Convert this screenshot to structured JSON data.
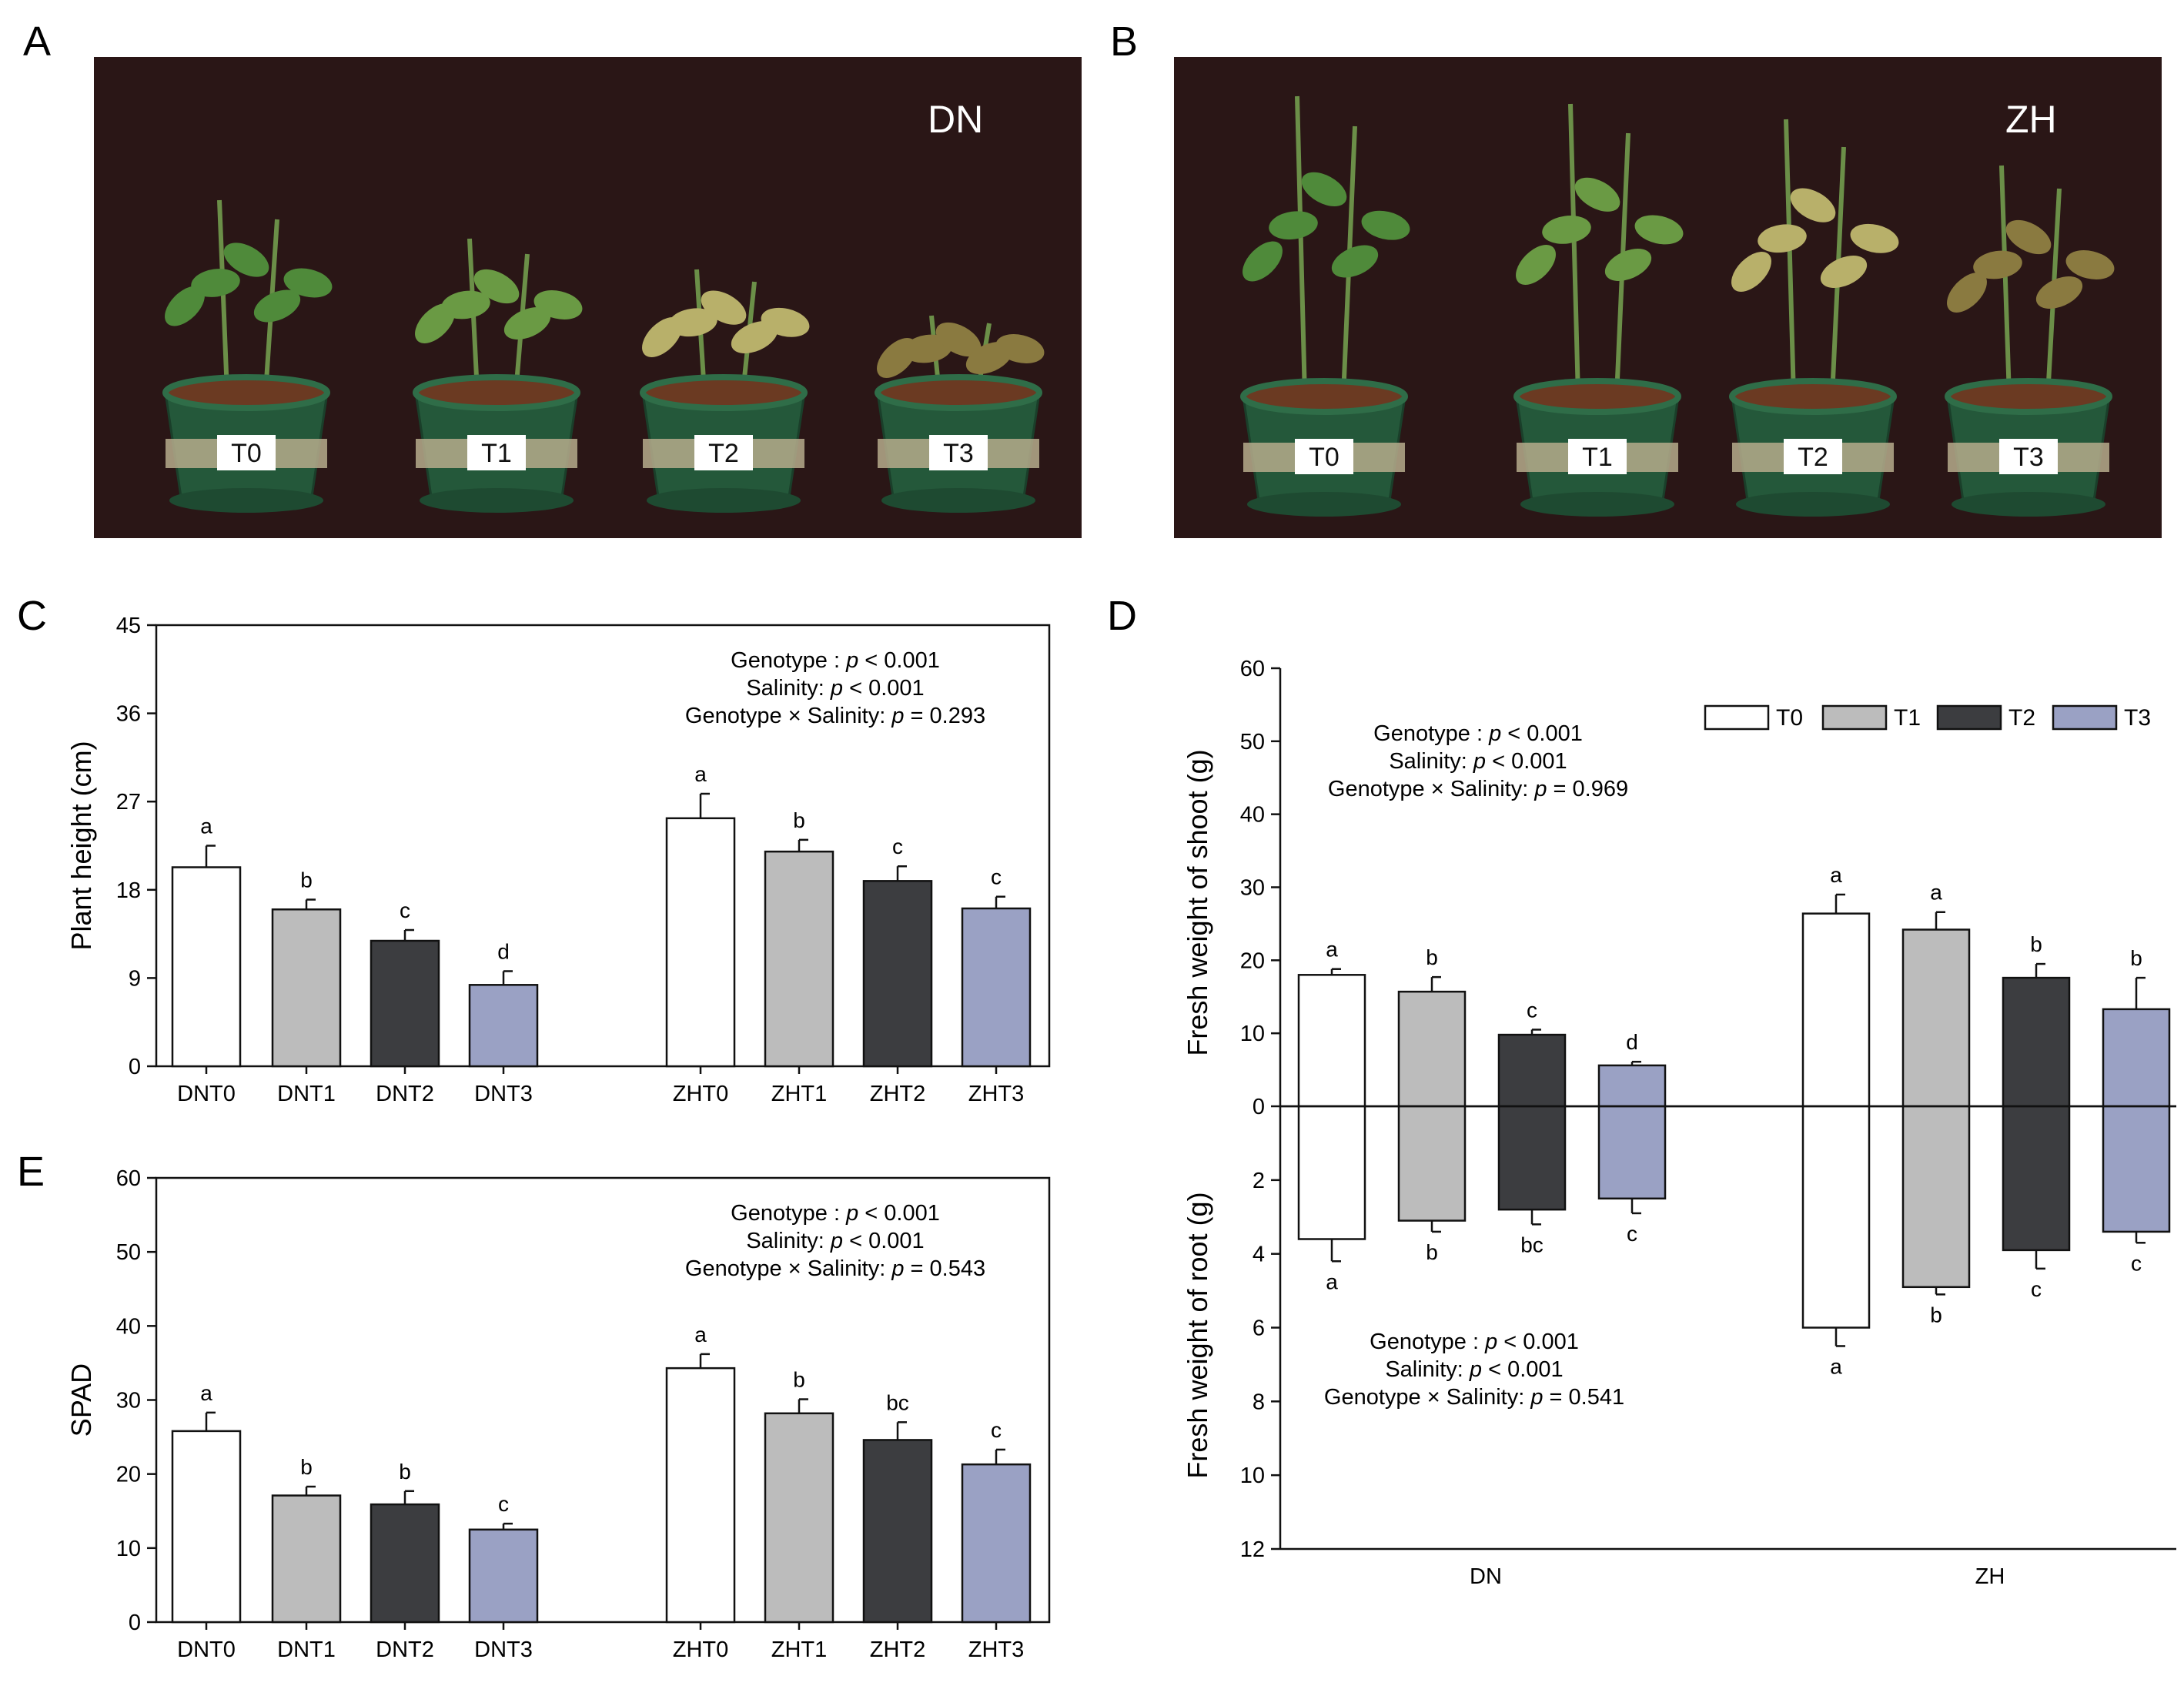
{
  "panels": {
    "a": {
      "letter": "A",
      "genotype_label": "DN",
      "pots": [
        "T0",
        "T1",
        "T2",
        "T3"
      ]
    },
    "b": {
      "letter": "B",
      "genotype_label": "ZH",
      "pots": [
        "T0",
        "T1",
        "T2",
        "T3"
      ]
    },
    "c": {
      "letter": "C"
    },
    "d": {
      "letter": "D"
    },
    "e": {
      "letter": "E"
    }
  },
  "colors": {
    "T0": "#ffffff",
    "T1": "#bcbcbc",
    "T2": "#3c3d40",
    "T3": "#9aa1c4",
    "photo_bg": "#2a1616"
  },
  "chart_data": [
    {
      "id": "C",
      "type": "bar",
      "ylabel": "Plant height (cm)",
      "xlabel": "",
      "ylim": [
        0,
        45
      ],
      "yticks": [
        "0",
        "9",
        "18",
        "27",
        "36",
        "45"
      ],
      "categories": [
        "DNT0",
        "DNT1",
        "DNT2",
        "DNT3",
        "ZHT0",
        "ZHT1",
        "ZHT2",
        "ZHT3"
      ],
      "treatments": [
        "T0",
        "T1",
        "T2",
        "T3",
        "T0",
        "T1",
        "T2",
        "T3"
      ],
      "values": [
        20.3,
        16.0,
        12.8,
        8.3,
        25.3,
        21.9,
        18.9,
        16.1
      ],
      "errors": [
        2.2,
        1.0,
        1.1,
        1.4,
        2.5,
        1.2,
        1.5,
        1.2
      ],
      "letters": [
        "a",
        "b",
        "c",
        "d",
        "a",
        "b",
        "c",
        "c"
      ],
      "stats": [
        "Genotype :  p < 0.001",
        "Salinity: p < 0.001",
        "Genotype × Salinity: p = 0.293"
      ]
    },
    {
      "id": "E",
      "type": "bar",
      "ylabel": "SPAD",
      "xlabel": "",
      "ylim": [
        0,
        60
      ],
      "yticks": [
        "0",
        "10",
        "20",
        "30",
        "40",
        "50",
        "60"
      ],
      "categories": [
        "DNT0",
        "DNT1",
        "DNT2",
        "DNT3",
        "ZHT0",
        "ZHT1",
        "ZHT2",
        "ZHT3"
      ],
      "treatments": [
        "T0",
        "T1",
        "T2",
        "T3",
        "T0",
        "T1",
        "T2",
        "T3"
      ],
      "values": [
        25.8,
        17.1,
        15.9,
        12.5,
        34.3,
        28.2,
        24.6,
        21.3
      ],
      "errors": [
        2.5,
        1.2,
        1.8,
        0.8,
        1.9,
        1.9,
        2.4,
        2.0
      ],
      "letters": [
        "a",
        "b",
        "b",
        "c",
        "a",
        "b",
        "bc",
        "c"
      ],
      "stats": [
        "Genotype :  p < 0.001",
        "Salinity: p < 0.001",
        "Genotype × Salinity: p = 0.543"
      ]
    },
    {
      "id": "D",
      "type": "bar",
      "categories": [
        "DN",
        "ZH"
      ],
      "legend": [
        "T0",
        "T1",
        "T2",
        "T3"
      ],
      "legend_position": "top-right",
      "shoot": {
        "ylabel": "Fresh weight of shoot (g)",
        "ylim": [
          0,
          60
        ],
        "yticks": [
          "0",
          "10",
          "20",
          "30",
          "40",
          "50",
          "60"
        ],
        "series": [
          {
            "name": "T0",
            "values": [
              18.0,
              26.4
            ],
            "errors": [
              0.8,
              2.6
            ],
            "letters": [
              "a",
              "a"
            ]
          },
          {
            "name": "T1",
            "values": [
              15.7,
              24.2
            ],
            "errors": [
              2.0,
              2.4
            ],
            "letters": [
              "b",
              "a"
            ]
          },
          {
            "name": "T2",
            "values": [
              9.8,
              17.6
            ],
            "errors": [
              0.7,
              1.9
            ],
            "letters": [
              "c",
              "b"
            ]
          },
          {
            "name": "T3",
            "values": [
              5.6,
              13.3
            ],
            "errors": [
              0.5,
              4.3
            ],
            "letters": [
              "d",
              "b"
            ]
          }
        ],
        "stats": [
          "Genotype :  p < 0.001",
          "Salinity: p < 0.001",
          "Genotype × Salinity: p = 0.969"
        ]
      },
      "root": {
        "ylabel": "Fresh weight of  root (g)",
        "ylim": [
          0,
          12
        ],
        "yticks": [
          "2",
          "4",
          "6",
          "8",
          "10",
          "12"
        ],
        "series": [
          {
            "name": "T0",
            "values": [
              3.6,
              6.0
            ],
            "errors": [
              0.6,
              0.5
            ],
            "letters": [
              "a",
              "a"
            ]
          },
          {
            "name": "T1",
            "values": [
              3.1,
              4.9
            ],
            "errors": [
              0.3,
              0.2
            ],
            "letters": [
              "b",
              "b"
            ]
          },
          {
            "name": "T2",
            "values": [
              2.8,
              3.9
            ],
            "errors": [
              0.4,
              0.5
            ],
            "letters": [
              "bc",
              "c"
            ]
          },
          {
            "name": "T3",
            "values": [
              2.5,
              3.4
            ],
            "errors": [
              0.4,
              0.3
            ],
            "letters": [
              "c",
              "c"
            ]
          }
        ],
        "stats": [
          "Genotype :  p < 0.001",
          "Salinity: p < 0.001",
          "Genotype × Salinity: p = 0.541"
        ]
      }
    }
  ]
}
